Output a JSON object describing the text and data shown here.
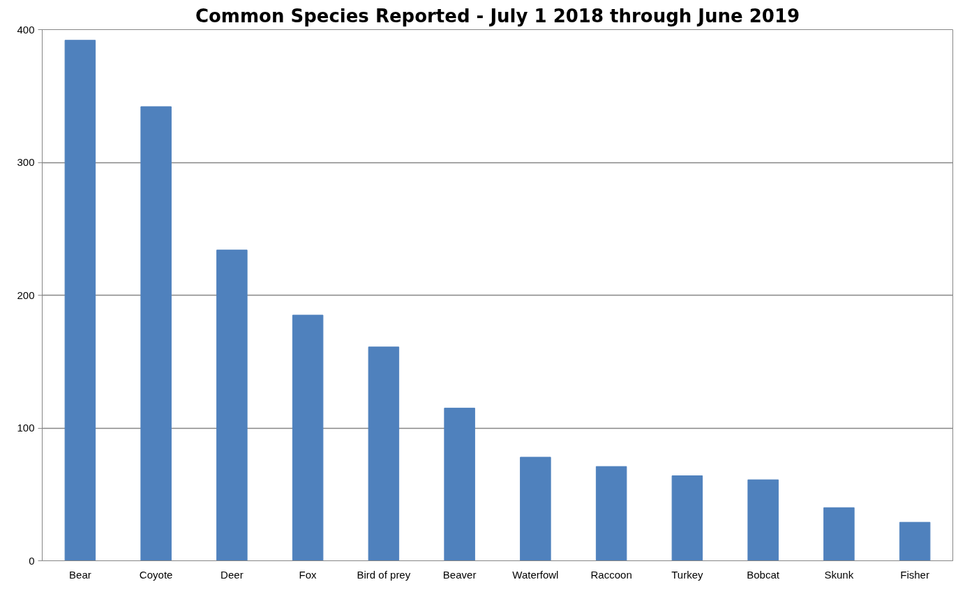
{
  "chart_data": {
    "type": "bar",
    "title": "Common Species Reported - July 1 2018 through June 2019",
    "categories": [
      "Bear",
      "Coyote",
      "Deer",
      "Fox",
      "Bird of prey",
      "Beaver",
      "Waterfowl",
      "Raccoon",
      "Turkey",
      "Bobcat",
      "Skunk",
      "Fisher"
    ],
    "values": [
      392,
      342,
      234,
      185,
      161,
      115,
      78,
      71,
      64,
      61,
      40,
      29
    ],
    "color": "#4f81bd",
    "ylim": [
      0,
      400
    ],
    "yticks": [
      0,
      100,
      200,
      300,
      400
    ],
    "grid": "y"
  }
}
